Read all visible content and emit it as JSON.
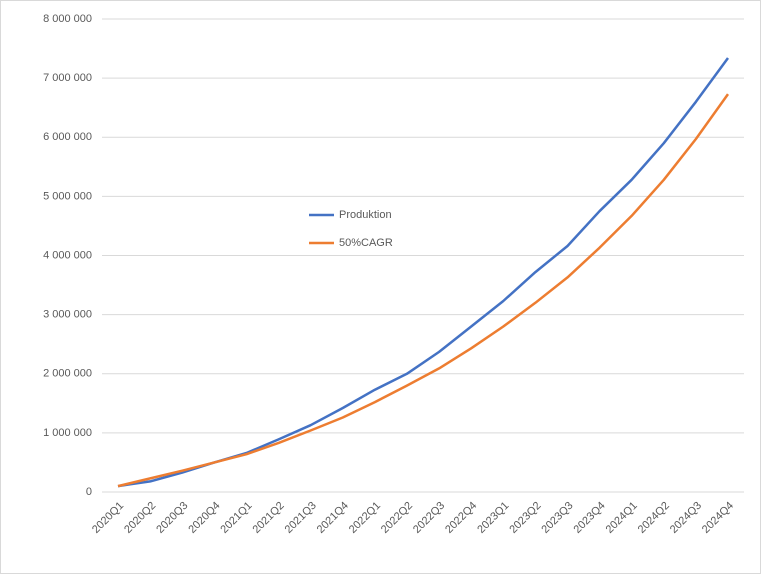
{
  "chart_data": {
    "type": "line",
    "categories": [
      "2020Q1",
      "2020Q2",
      "2020Q3",
      "2020Q4",
      "2021Q1",
      "2021Q2",
      "2021Q3",
      "2021Q4",
      "2022Q1",
      "2022Q2",
      "2022Q3",
      "2022Q4",
      "2023Q1",
      "2023Q2",
      "2023Q3",
      "2023Q4",
      "2024Q1",
      "2024Q2",
      "2024Q3",
      "2024Q4"
    ],
    "series": [
      {
        "name": "Produktion",
        "color": "#4472c4",
        "values": [
          100000,
          180000,
          330000,
          500000,
          660000,
          890000,
          1130000,
          1420000,
          1730000,
          2000000,
          2370000,
          2800000,
          3230000,
          3720000,
          4160000,
          4750000,
          5280000,
          5900000,
          6600000,
          7340000
        ]
      },
      {
        "name": "50%CAGR",
        "color": "#ed7d31",
        "values": [
          100000,
          230000,
          360000,
          500000,
          640000,
          830000,
          1040000,
          1260000,
          1520000,
          1800000,
          2090000,
          2430000,
          2800000,
          3200000,
          3630000,
          4130000,
          4670000,
          5280000,
          5970000,
          6730000
        ]
      }
    ],
    "ylim": [
      0,
      8000000
    ],
    "yticks": [
      0,
      {
        "value": 1000000,
        "label": "1 000 000"
      },
      {
        "value": 2000000,
        "label": "2 000 000"
      },
      {
        "value": 3000000,
        "label": "3 000 000"
      },
      {
        "value": 4000000,
        "label": "4 000 000"
      },
      {
        "value": 5000000,
        "label": "5 000 000"
      },
      {
        "value": 6000000,
        "label": "6 000 000"
      },
      {
        "value": 7000000,
        "label": "7 000 000"
      },
      {
        "value": 8000000,
        "label": "8 000 000"
      }
    ],
    "grid": true
  }
}
